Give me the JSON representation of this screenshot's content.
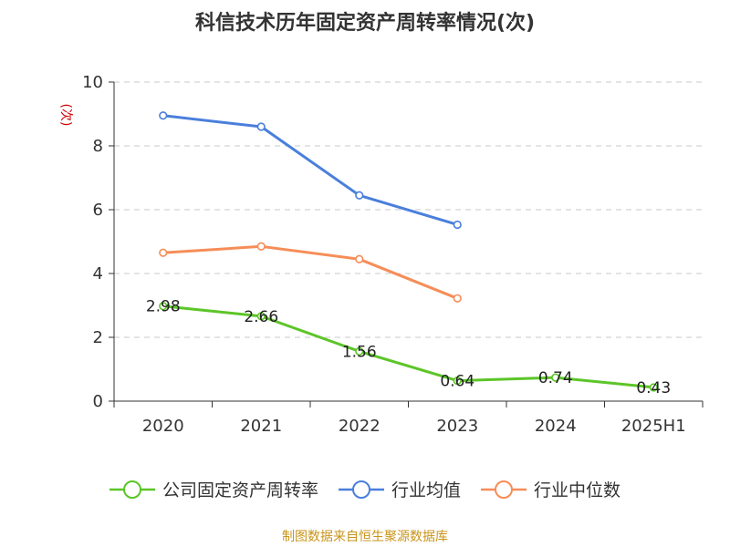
{
  "title": "科信技术历年固定资产周转率情况(次)",
  "source": "制图数据来自恒生聚源数据库",
  "chart_data": {
    "type": "line",
    "title": "科信技术历年固定资产周转率情况(次)",
    "ylabel": "(次)",
    "xlabel": "",
    "categories": [
      "2020",
      "2021",
      "2022",
      "2023",
      "2024",
      "2025H1"
    ],
    "ylim": [
      0,
      10
    ],
    "yticks": [
      0,
      2,
      4,
      6,
      8,
      10
    ],
    "grid": true,
    "legend_position": "bottom",
    "series": [
      {
        "name": "公司固定资产周转率",
        "color": "#5cc528",
        "values": [
          2.98,
          2.66,
          1.56,
          0.64,
          0.74,
          0.43
        ],
        "labels": [
          "2.98",
          "2.66",
          "1.56",
          "0.64",
          "0.74",
          "0.43"
        ]
      },
      {
        "name": "行业均值",
        "color": "#4a7fdc",
        "values": [
          8.95,
          8.6,
          6.45,
          5.53,
          null,
          null
        ]
      },
      {
        "name": "行业中位数",
        "color": "#f68d57",
        "values": [
          4.65,
          4.85,
          4.45,
          3.22,
          null,
          null
        ]
      }
    ]
  }
}
